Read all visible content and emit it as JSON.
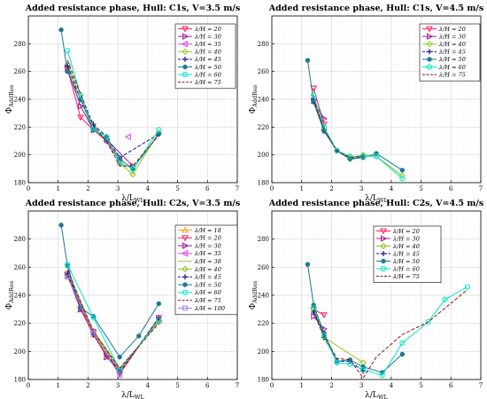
{
  "chart_data": [
    {
      "type": "line",
      "title": "Added resistance phase, Hull: C1s, V=3.5 m/s",
      "xlabel": "λ/L_WL",
      "ylabel": "Φ_AddRes",
      "xlim": [
        0,
        7
      ],
      "ylim": [
        180,
        300
      ],
      "xticks": [
        "0",
        "1",
        "2",
        "3",
        "4",
        "5",
        "6",
        "7"
      ],
      "yticks": [
        "180",
        "200",
        "220",
        "240",
        "260",
        "280"
      ],
      "grid": true,
      "legend": "top-right",
      "series": [
        {
          "name": "λ/H = 20",
          "color": "#ff1a5e",
          "dash": "",
          "marker": "tri-down",
          "x": [
            1.31,
            1.75,
            2.18,
            2.62,
            3.06
          ],
          "y": [
            262,
            227,
            218,
            210,
            195
          ]
        },
        {
          "name": "λ/H = 30",
          "color": "#a0198c",
          "dash": "",
          "marker": "tri-right",
          "x": [
            1.31,
            1.75,
            2.18,
            2.62,
            3.5
          ],
          "y": [
            262,
            235,
            218,
            211,
            192
          ]
        },
        {
          "name": "λ/H = 35",
          "color": "#e63cf0",
          "dash": "",
          "marker": "tri-left",
          "x": [
            3.35
          ],
          "y": [
            213
          ]
        },
        {
          "name": "λ/H = 40",
          "color": "#8cc81e",
          "dash": "",
          "marker": "diamond",
          "x": [
            1.31,
            1.75,
            2.18,
            2.62,
            3.06,
            3.5,
            4.37
          ],
          "y": [
            265,
            243,
            219,
            213,
            194,
            186,
            216
          ]
        },
        {
          "name": "λ/H = 45",
          "color": "#14148c",
          "dash": "4,2",
          "marker": "plus",
          "x": [
            1.31,
            1.75,
            2.18,
            2.62,
            3.06,
            4.37
          ],
          "y": [
            264,
            240,
            222,
            213,
            198,
            215
          ]
        },
        {
          "name": "λ/H = 50",
          "color": "#1e7896",
          "dash": "",
          "marker": "dot",
          "x": [
            1.1,
            1.31,
            1.75,
            2.18,
            2.62,
            3.06,
            3.5,
            4.37
          ],
          "y": [
            290,
            260,
            240,
            218,
            211,
            197,
            190,
            215
          ]
        },
        {
          "name": "λ/H = 60",
          "color": "#00e6c8",
          "dash": "",
          "marker": "circle",
          "x": [
            1.31,
            1.75,
            2.18,
            2.62,
            3.06,
            3.5,
            4.37
          ],
          "y": [
            275,
            243,
            219,
            213,
            194,
            190,
            218
          ]
        },
        {
          "name": "λ/H = 75",
          "color": "#8c1414",
          "dash": "4,2",
          "marker": "none",
          "x": [
            1.31,
            1.75,
            2.18,
            2.62,
            3.06,
            3.5,
            4.37
          ],
          "y": [
            268,
            244,
            221,
            210,
            192,
            192,
            214
          ]
        }
      ]
    },
    {
      "type": "line",
      "title": "Added resistance phase, Hull: C1s, V=4.5 m/s",
      "xlabel": "λ/L_WL",
      "ylabel": "Φ_AddRes",
      "xlim": [
        0,
        7
      ],
      "ylim": [
        180,
        300
      ],
      "xticks": [
        "0",
        "1",
        "2",
        "3",
        "4",
        "5",
        "6",
        "7"
      ],
      "yticks": [
        "180",
        "200",
        "220",
        "240",
        "260",
        "280"
      ],
      "grid": true,
      "legend": "top-right",
      "series": [
        {
          "name": "λ/H = 20",
          "color": "#ff1a5e",
          "dash": "",
          "marker": "tri-down",
          "x": [
            1.4,
            1.75
          ],
          "y": [
            248,
            222
          ]
        },
        {
          "name": "λ/H = 30",
          "color": "#a0198c",
          "dash": "",
          "marker": "tri-right",
          "x": [
            1.4,
            1.75
          ],
          "y": [
            239,
            226
          ]
        },
        {
          "name": "λ/H = 40",
          "color": "#8cc81e",
          "dash": "",
          "marker": "diamond",
          "x": [
            1.4,
            1.75,
            2.18,
            2.62,
            3.06,
            3.5,
            4.37
          ],
          "y": [
            243,
            218,
            203,
            198,
            200,
            199,
            185
          ]
        },
        {
          "name": "λ/H = 45",
          "color": "#14148c",
          "dash": "4,2",
          "marker": "plus",
          "x": [
            1.4,
            1.75,
            2.18,
            2.62,
            3.06
          ],
          "y": [
            240,
            218,
            203,
            197,
            199
          ]
        },
        {
          "name": "λ/H = 50",
          "color": "#1e7896",
          "dash": "",
          "marker": "dot",
          "x": [
            1.2,
            1.4,
            1.75,
            2.18,
            2.62,
            3.06,
            3.5,
            4.37
          ],
          "y": [
            268,
            238,
            217,
            203,
            197,
            198,
            201,
            189
          ]
        },
        {
          "name": "λ/H = 60",
          "color": "#00e6c8",
          "dash": "",
          "marker": "circle",
          "x": [
            1.4,
            1.75,
            2.18,
            2.62,
            3.06,
            3.5,
            4.37
          ],
          "y": [
            243,
            220,
            203,
            199,
            199,
            199,
            183
          ]
        },
        {
          "name": "λ/H = 75",
          "color": "#8c1414",
          "dash": "4,2",
          "marker": "none",
          "x": [
            1.4,
            1.75,
            2.18,
            2.62,
            3.06
          ],
          "y": [
            238,
            218,
            203,
            198,
            199
          ]
        }
      ]
    },
    {
      "type": "line",
      "title": "Added resistance phase, Hull: C2s, V=3.5 m/s",
      "xlabel": "λ/L_WL",
      "ylabel": "Φ_AddRes",
      "xlim": [
        0,
        7
      ],
      "ylim": [
        180,
        300
      ],
      "xticks": [
        "0",
        "1",
        "2",
        "3",
        "4",
        "5",
        "6",
        "7"
      ],
      "yticks": [
        "180",
        "200",
        "220",
        "240",
        "260",
        "280"
      ],
      "grid": true,
      "legend": "top-right",
      "series": [
        {
          "name": "λ/H = 18",
          "color": "#f0a01e",
          "dash": "",
          "marker": "tri-up",
          "x": [
            1.31,
            1.75,
            2.18,
            2.62,
            3.06,
            4.37
          ],
          "y": [
            256,
            230,
            212,
            196,
            186,
            222
          ]
        },
        {
          "name": "λ/H = 20",
          "color": "#ff1a5e",
          "dash": "",
          "marker": "tri-down",
          "x": [
            1.31,
            1.75,
            2.18,
            2.62,
            3.06,
            4.37
          ],
          "y": [
            255,
            230,
            212,
            197,
            184,
            224
          ]
        },
        {
          "name": "λ/H = 30",
          "color": "#a0198c",
          "dash": "",
          "marker": "tri-right",
          "x": [
            1.31,
            1.75,
            2.18,
            2.62,
            3.06,
            4.37
          ],
          "y": [
            254,
            230,
            215,
            196,
            187,
            222
          ]
        },
        {
          "name": "λ/H = 35",
          "color": "#e63cf0",
          "dash": "",
          "marker": "tri-left",
          "x": [
            1.31,
            2.18,
            3.06
          ],
          "y": [
            256,
            214,
            186
          ]
        },
        {
          "name": "λ/H = 38",
          "color": "#aabe3c",
          "dash": "",
          "marker": "none",
          "x": [
            1.31,
            2.18,
            3.06,
            4.37
          ],
          "y": [
            257,
            215,
            188,
            221
          ]
        },
        {
          "name": "λ/H = 40",
          "color": "#8cc81e",
          "dash": "",
          "marker": "diamond",
          "x": [
            1.31,
            2.18,
            3.06,
            4.37
          ],
          "y": [
            255,
            213,
            187,
            221
          ]
        },
        {
          "name": "λ/H = 45",
          "color": "#14148c",
          "dash": "4,2",
          "marker": "plus",
          "x": [
            1.31,
            2.18,
            3.06,
            4.37
          ],
          "y": [
            255,
            212,
            185,
            224
          ]
        },
        {
          "name": "λ/H = 50",
          "color": "#1e7896",
          "dash": "",
          "marker": "dot",
          "x": [
            1.1,
            1.31,
            1.75,
            2.18,
            3.06,
            3.7,
            4.37
          ],
          "y": [
            290,
            261,
            231,
            225,
            196,
            211,
            234
          ]
        },
        {
          "name": "λ/H = 60",
          "color": "#00e6c8",
          "dash": "",
          "marker": "circle",
          "x": [
            1.31,
            2.18,
            3.06,
            4.37
          ],
          "y": [
            262,
            224,
            187,
            222
          ]
        },
        {
          "name": "λ/H = 75",
          "color": "#8c1414",
          "dash": "4,2",
          "marker": "none",
          "x": [
            1.31,
            2.18,
            3.06,
            4.37
          ],
          "y": [
            258,
            214,
            188,
            220
          ]
        },
        {
          "name": "λ/H = 100",
          "color": "#9b82dc",
          "dash": "",
          "marker": "square",
          "x": [
            1.31,
            2.18,
            3.06
          ],
          "y": [
            253,
            213,
            183
          ]
        }
      ]
    },
    {
      "type": "line",
      "title": "Added resistance phase, Hull: C2s, V=4.5 m/s",
      "xlabel": "λ/L_WL",
      "ylabel": "Φ_AddRes",
      "xlim": [
        0,
        7
      ],
      "ylim": [
        180,
        300
      ],
      "xticks": [
        "0",
        "1",
        "2",
        "3",
        "4",
        "5",
        "6",
        "7"
      ],
      "yticks": [
        "180",
        "200",
        "220",
        "240",
        "260",
        "280"
      ],
      "grid": true,
      "legend": "top-right",
      "series": [
        {
          "name": "λ/H = 20",
          "color": "#ff1a5e",
          "dash": "",
          "marker": "tri-down",
          "x": [
            1.4,
            1.75
          ],
          "y": [
            230,
            226
          ]
        },
        {
          "name": "λ/H = 30",
          "color": "#a0198c",
          "dash": "",
          "marker": "tri-right",
          "x": [
            1.4,
            1.75
          ],
          "y": [
            225,
            216
          ]
        },
        {
          "name": "λ/H = 40",
          "color": "#8cc81e",
          "dash": "",
          "marker": "diamond",
          "x": [
            1.4,
            1.75,
            3.06
          ],
          "y": [
            230,
            210,
            192
          ]
        },
        {
          "name": "λ/H = 45",
          "color": "#14148c",
          "dash": "4,2",
          "marker": "plus",
          "x": [
            1.4,
            1.75,
            2.18,
            2.62,
            3.06
          ],
          "y": [
            228,
            210,
            193,
            193,
            186
          ]
        },
        {
          "name": "λ/H = 50",
          "color": "#1e7896",
          "dash": "",
          "marker": "dot",
          "x": [
            1.2,
            1.4,
            1.75,
            2.18,
            2.62,
            3.06,
            3.7,
            4.37
          ],
          "y": [
            262,
            233,
            213,
            193,
            194,
            189,
            185,
            198
          ]
        },
        {
          "name": "λ/H = 60",
          "color": "#00e6c8",
          "dash": "",
          "marker": "circle",
          "x": [
            1.4,
            1.75,
            2.18,
            2.62,
            3.06,
            3.7,
            4.37,
            5.24,
            5.8,
            6.55
          ],
          "y": [
            231,
            211,
            192,
            191,
            187,
            183,
            206,
            221,
            237,
            246
          ]
        },
        {
          "name": "λ/H = 75",
          "color": "#8c1414",
          "dash": "4,2",
          "marker": "none",
          "x": [
            1.4,
            1.75,
            2.18,
            2.62,
            3.06,
            3.5,
            4.37,
            5.24,
            6.55
          ],
          "y": [
            230,
            211,
            195,
            194,
            181,
            196,
            212,
            221,
            244
          ]
        }
      ]
    }
  ]
}
